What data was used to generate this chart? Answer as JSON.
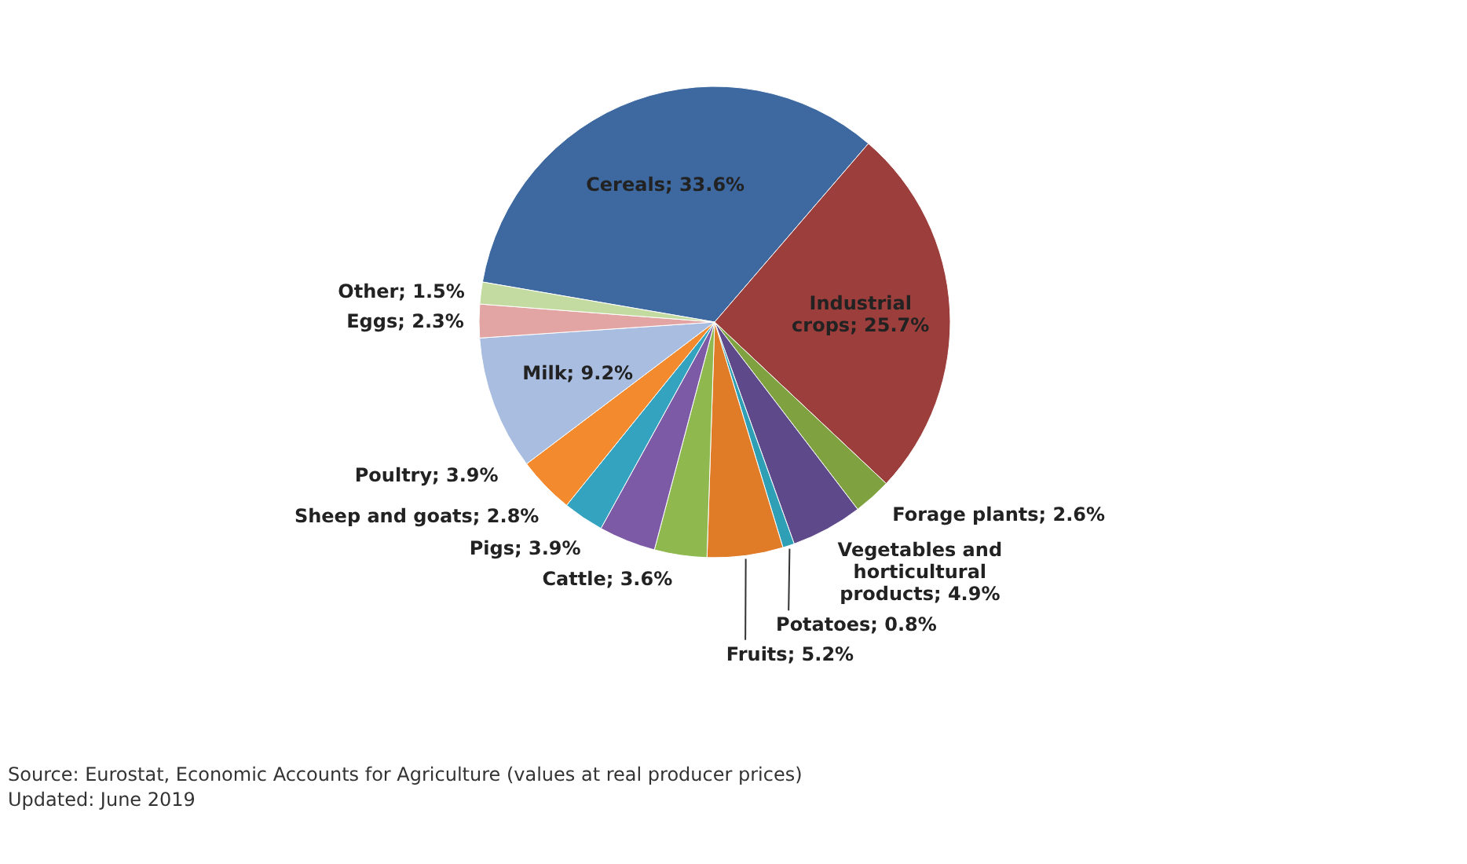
{
  "chart_data": {
    "type": "pie",
    "categories": [
      "Cereals",
      "Industrial crops",
      "Forage plants",
      "Vegetables and horticultural products",
      "Potatoes",
      "Fruits",
      "Cattle",
      "Pigs",
      "Sheep and goats",
      "Poultry",
      "Milk",
      "Eggs",
      "Other"
    ],
    "values": [
      33.6,
      25.7,
      2.6,
      4.9,
      0.8,
      5.2,
      3.6,
      3.9,
      2.8,
      3.9,
      9.2,
      2.3,
      1.5
    ],
    "value_labels": [
      "33.6%",
      "25.7%",
      "2.6%",
      "4.9%",
      "0.8%",
      "5.2%",
      "3.6%",
      "3.9%",
      "2.8%",
      "3.9%",
      "9.2%",
      "2.3%",
      "1.5%"
    ],
    "colors": [
      "#3d69a0",
      "#9c3e3b",
      "#7fa13f",
      "#5e4a8a",
      "#2f9fb6",
      "#e07b28",
      "#8fb84e",
      "#7d5aa6",
      "#33a3c0",
      "#f38b2e",
      "#a8bde0",
      "#e3a4a4",
      "#c3dba0"
    ],
    "legend": false,
    "annotations": [
      "Source: Eurostat, Economic Accounts for Agriculture (values at real producer prices)",
      "Updated: June 2019"
    ]
  }
}
